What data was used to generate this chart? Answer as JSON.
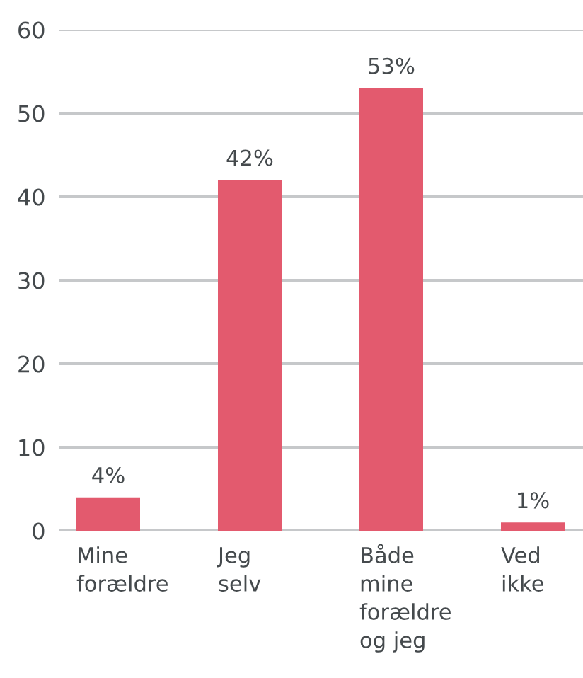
{
  "chart_data": {
    "type": "bar",
    "categories": [
      "Mine\nforældre",
      "Jeg\nselv",
      "Både\nmine\nforældre\nog jeg",
      "Ved\nikke"
    ],
    "values": [
      4,
      42,
      53,
      1
    ],
    "color": "#e35a6e",
    "value_labels": [
      "4%",
      "42%",
      "53%",
      "1%"
    ],
    "ylim": [
      0,
      60
    ],
    "yticks": [
      0,
      10,
      20,
      30,
      40,
      50,
      60
    ],
    "grid": "y"
  }
}
